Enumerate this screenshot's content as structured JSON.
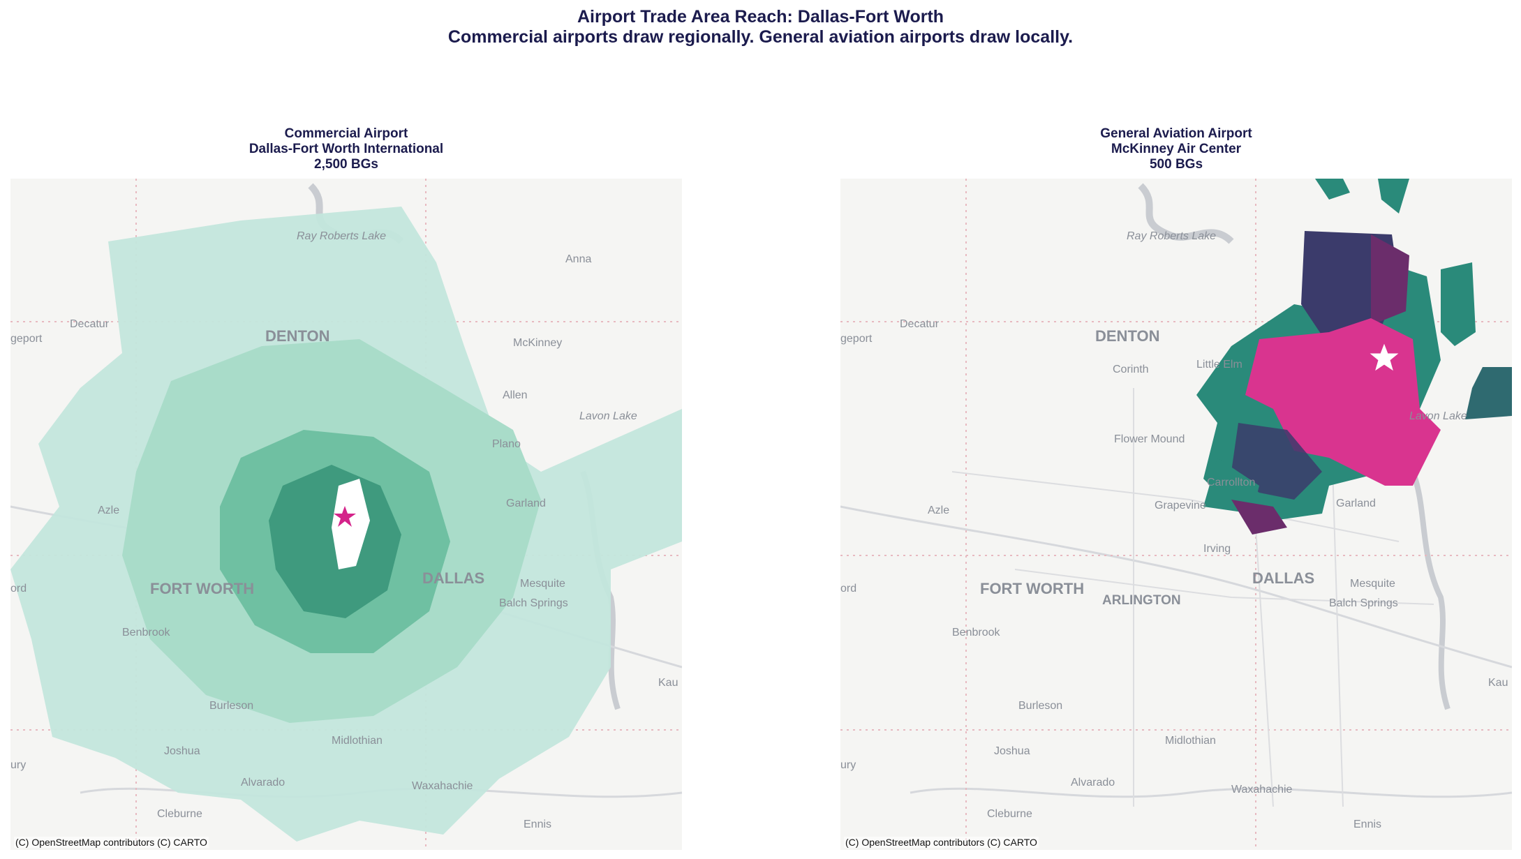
{
  "figure": {
    "title": "Airport Trade Area Reach: Dallas-Fort Worth",
    "subtitle": "Commercial airports draw regionally. General aviation airports draw locally."
  },
  "panels": [
    {
      "type": "Commercial Airport",
      "name": "Dallas-Fort Worth International",
      "count": "2,500 BGs",
      "attribution": "(C) OpenStreetMap contributors (C) CARTO",
      "marker": "star-icon",
      "colors": {
        "fill_light": "#c3e6dc",
        "fill_mid": "#8fd0b8",
        "fill_dark": "#3f9a7e",
        "marker": "#d4238a"
      }
    },
    {
      "type": "General Aviation Airport",
      "name": "McKinney Air Center",
      "count": "500 BGs",
      "attribution": "(C) OpenStreetMap contributors (C) CARTO",
      "marker": "star-icon",
      "colors": {
        "pink": "#d9348f",
        "purple": "#6b2d6b",
        "navy": "#3b3b6b",
        "teal": "#2a8a7a",
        "dark_teal": "#2f6a70"
      }
    }
  ],
  "map_labels": {
    "left": [
      "Ray Roberts Lake",
      "Decatur",
      "DENTON",
      "McKinney",
      "Lavon Lake",
      "Allen",
      "Plano",
      "Garland",
      "Azle",
      "FORT WORTH",
      "DALLAS",
      "Mesquite",
      "Balch Springs",
      "Benbrook",
      "Burleson",
      "Joshua",
      "Alvarado",
      "Midlothian",
      "Waxahachie",
      "Cleburne",
      "Ennis",
      "Anna",
      "Kau",
      "ury",
      "ord",
      "geport"
    ],
    "right": [
      "Ray Roberts Lake",
      "Decatur",
      "DENTON",
      "Corinth",
      "Little Elm",
      "Lavon Lake",
      "Flower Mound",
      "Carrollton",
      "Grapevine",
      "Garland",
      "Azle",
      "Irving",
      "FORT WORTH",
      "ARLINGTON",
      "DALLAS",
      "Mesquite",
      "Balch Springs",
      "Benbrook",
      "Burleson",
      "Joshua",
      "Midlothian",
      "Alvarado",
      "Waxahachie",
      "Cleburne",
      "Ennis",
      "Kau",
      "ury",
      "ord",
      "geport"
    ]
  }
}
